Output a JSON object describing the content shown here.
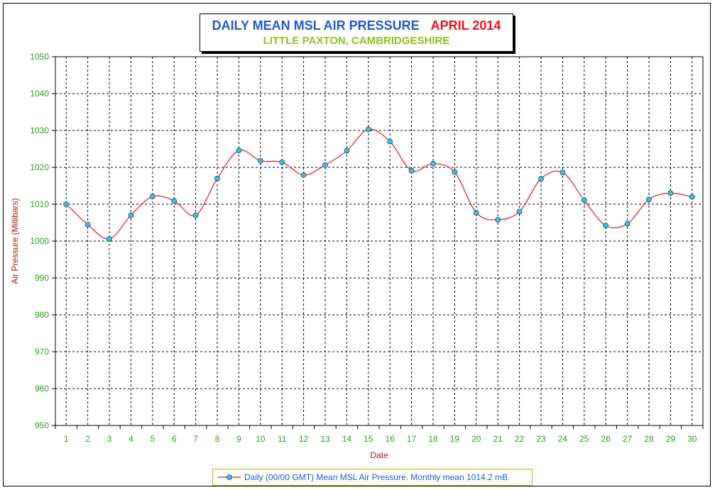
{
  "chart_data": {
    "type": "line",
    "title": "DAILY MEAN MSL AIR PRESSURE",
    "title_month": "APRIL 2014",
    "subtitle": "LITTLE PAXTON, CAMBRIDGESHIRE",
    "xlabel": "Date",
    "ylabel": "Air Pressure (Millibars)",
    "ylim": [
      950,
      1050
    ],
    "y_ticks": [
      950,
      960,
      970,
      980,
      990,
      1000,
      1010,
      1020,
      1030,
      1040,
      1050
    ],
    "categories": [
      1,
      2,
      3,
      4,
      5,
      6,
      7,
      8,
      9,
      10,
      11,
      12,
      13,
      14,
      15,
      16,
      17,
      18,
      19,
      20,
      21,
      22,
      23,
      24,
      25,
      26,
      27,
      28,
      29,
      30
    ],
    "grid": true,
    "legend_position": "bottom",
    "series": [
      {
        "name": "Daily (00/00 GMT) Mean MSL Air Pressure. Monthly mean 1014.2 mB.",
        "values": [
          1010.0,
          1004.5,
          1000.6,
          1007.0,
          1012.1,
          1010.9,
          1007.0,
          1017.0,
          1024.6,
          1021.8,
          1021.4,
          1017.9,
          1020.6,
          1024.5,
          1030.3,
          1027.0,
          1019.1,
          1021.0,
          1018.7,
          1007.7,
          1005.8,
          1008.0,
          1016.9,
          1018.6,
          1011.1,
          1004.2,
          1004.7,
          1011.3,
          1013.0,
          1012.0
        ]
      }
    ],
    "colors": {
      "line": "#e8141e",
      "marker_fill": "#33c8d2",
      "tick_x": "#2a9a22",
      "tick_y": "#2a9a22",
      "axis_label": "#9a1818",
      "legend_text": "#1f5cc4",
      "legend_border": "#c8b400"
    }
  }
}
